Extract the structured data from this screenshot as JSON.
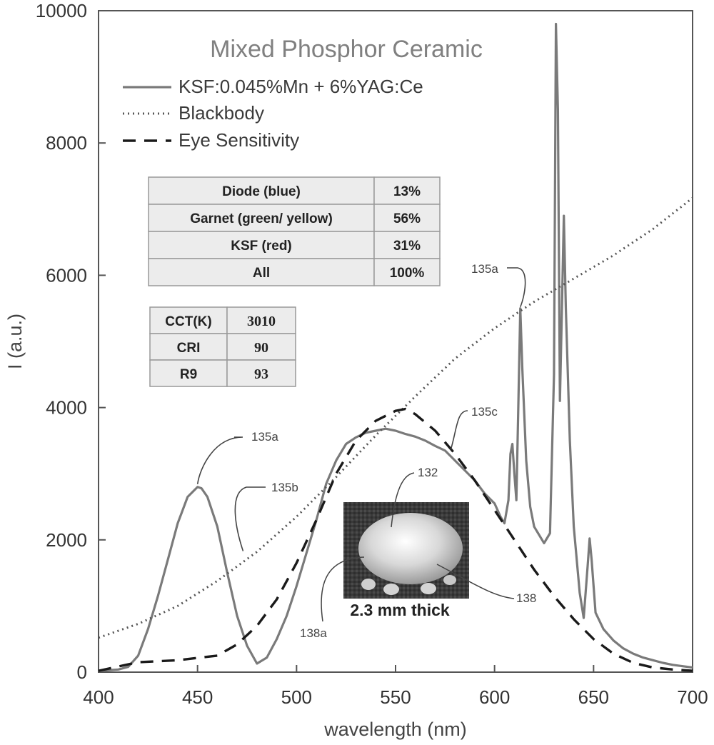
{
  "chart_data": {
    "type": "line",
    "title": "Mixed Phosphor Ceramic",
    "xlabel": "wavelength (nm)",
    "ylabel": "I (a.u.)",
    "xlim": [
      400,
      700
    ],
    "ylim": [
      0,
      10000
    ],
    "x_ticks": [
      "400",
      "450",
      "500",
      "550",
      "600",
      "650",
      "700"
    ],
    "y_ticks": [
      "0",
      "2000",
      "4000",
      "6000",
      "8000",
      "10000"
    ],
    "grid": false,
    "legend_position": "top-left",
    "series": [
      {
        "name": "KSF:0.045%Mn + 6%YAG:Ce",
        "style": "solid",
        "color": "#7a7a7a",
        "points": [
          [
            400,
            20
          ],
          [
            410,
            40
          ],
          [
            415,
            80
          ],
          [
            420,
            250
          ],
          [
            425,
            650
          ],
          [
            430,
            1150
          ],
          [
            435,
            1700
          ],
          [
            440,
            2250
          ],
          [
            445,
            2650
          ],
          [
            450,
            2800
          ],
          [
            452,
            2780
          ],
          [
            455,
            2650
          ],
          [
            460,
            2200
          ],
          [
            465,
            1500
          ],
          [
            470,
            850
          ],
          [
            475,
            400
          ],
          [
            480,
            130
          ],
          [
            485,
            220
          ],
          [
            490,
            500
          ],
          [
            495,
            850
          ],
          [
            500,
            1300
          ],
          [
            505,
            1800
          ],
          [
            510,
            2300
          ],
          [
            515,
            2850
          ],
          [
            520,
            3200
          ],
          [
            525,
            3450
          ],
          [
            530,
            3550
          ],
          [
            535,
            3620
          ],
          [
            540,
            3650
          ],
          [
            545,
            3680
          ],
          [
            550,
            3650
          ],
          [
            555,
            3600
          ],
          [
            560,
            3560
          ],
          [
            565,
            3500
          ],
          [
            570,
            3420
          ],
          [
            575,
            3350
          ],
          [
            580,
            3200
          ],
          [
            585,
            3050
          ],
          [
            590,
            2900
          ],
          [
            595,
            2700
          ],
          [
            600,
            2550
          ],
          [
            603,
            2350
          ],
          [
            605,
            2250
          ],
          [
            607,
            2600
          ],
          [
            608,
            3300
          ],
          [
            609,
            3450
          ],
          [
            610,
            3000
          ],
          [
            611,
            2600
          ],
          [
            612,
            4000
          ],
          [
            613,
            5500
          ],
          [
            614,
            4600
          ],
          [
            616,
            3200
          ],
          [
            618,
            2500
          ],
          [
            620,
            2200
          ],
          [
            625,
            1950
          ],
          [
            628,
            2100
          ],
          [
            630,
            4500
          ],
          [
            631,
            9800
          ],
          [
            632,
            8500
          ],
          [
            633,
            4100
          ],
          [
            634,
            5500
          ],
          [
            635,
            6900
          ],
          [
            636,
            5500
          ],
          [
            638,
            3500
          ],
          [
            640,
            2200
          ],
          [
            643,
            1200
          ],
          [
            645,
            820
          ],
          [
            647,
            1600
          ],
          [
            648,
            2020
          ],
          [
            649,
            1700
          ],
          [
            651,
            900
          ],
          [
            655,
            650
          ],
          [
            660,
            480
          ],
          [
            665,
            360
          ],
          [
            670,
            280
          ],
          [
            675,
            220
          ],
          [
            680,
            180
          ],
          [
            685,
            140
          ],
          [
            690,
            110
          ],
          [
            695,
            90
          ],
          [
            700,
            70
          ]
        ]
      },
      {
        "name": "Blackbody",
        "style": "dotted",
        "color": "#555555",
        "points": [
          [
            400,
            520
          ],
          [
            420,
            730
          ],
          [
            440,
            1000
          ],
          [
            460,
            1380
          ],
          [
            480,
            1820
          ],
          [
            500,
            2350
          ],
          [
            520,
            2950
          ],
          [
            540,
            3580
          ],
          [
            560,
            4170
          ],
          [
            580,
            4740
          ],
          [
            600,
            5200
          ],
          [
            620,
            5600
          ],
          [
            640,
            5950
          ],
          [
            660,
            6300
          ],
          [
            680,
            6700
          ],
          [
            700,
            7170
          ]
        ]
      },
      {
        "name": "Eye Sensitivity",
        "style": "dashed",
        "color": "#1a1a1a",
        "points": [
          [
            400,
            20
          ],
          [
            420,
            150
          ],
          [
            440,
            180
          ],
          [
            460,
            250
          ],
          [
            470,
            420
          ],
          [
            480,
            700
          ],
          [
            490,
            1100
          ],
          [
            500,
            1650
          ],
          [
            510,
            2300
          ],
          [
            520,
            3000
          ],
          [
            530,
            3500
          ],
          [
            540,
            3800
          ],
          [
            550,
            3950
          ],
          [
            555,
            3980
          ],
          [
            560,
            3900
          ],
          [
            570,
            3650
          ],
          [
            580,
            3300
          ],
          [
            590,
            2900
          ],
          [
            600,
            2450
          ],
          [
            610,
            2000
          ],
          [
            620,
            1550
          ],
          [
            630,
            1150
          ],
          [
            640,
            800
          ],
          [
            650,
            500
          ],
          [
            660,
            280
          ],
          [
            670,
            140
          ],
          [
            680,
            70
          ],
          [
            690,
            40
          ],
          [
            700,
            20
          ]
        ]
      }
    ],
    "annotations": [
      {
        "label": "135a",
        "target": [
          450,
          2800
        ]
      },
      {
        "label": "135b",
        "target": [
          472,
          1880
        ]
      },
      {
        "label": "135a",
        "target": [
          613,
          5500
        ]
      },
      {
        "label": "135c",
        "target": [
          575,
          3450
        ]
      }
    ],
    "composition_table": {
      "rows": [
        {
          "label": "Diode (blue)",
          "value": "13%"
        },
        {
          "label": "Garnet (green/ yellow)",
          "value": "56%"
        },
        {
          "label": "KSF (red)",
          "value": "31%"
        },
        {
          "label": "All",
          "value": "100%"
        }
      ]
    },
    "metrics_table": {
      "rows": [
        {
          "label": "CCT(K)",
          "value": "3010"
        },
        {
          "label": "CRI",
          "value": "90"
        },
        {
          "label": "R9",
          "value": "93"
        }
      ]
    },
    "inset": {
      "callouts": [
        "132",
        "138",
        "138a"
      ],
      "caption": "2.3 mm thick"
    }
  }
}
